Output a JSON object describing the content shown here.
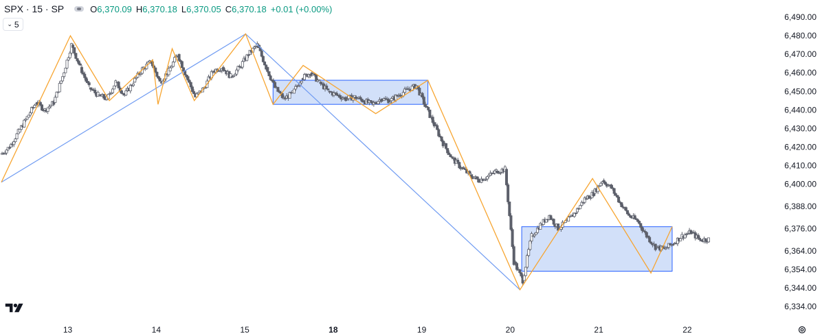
{
  "legend": {
    "symbol": "SPX · 15 · SP",
    "open_label": "O",
    "open": "6,370.09",
    "high_label": "H",
    "high": "6,370.18",
    "low_label": "L",
    "low": "6,370.05",
    "close_label": "C",
    "close": "6,370.18",
    "change": "+0.01 (+0.00%)",
    "up_color": "#089981"
  },
  "collapse_button": {
    "label": "5"
  },
  "icons": {
    "logo": "tradingview-logo-icon",
    "settings": "gear-icon",
    "visibility": "eye-icon",
    "collapse": "chevron-down-icon"
  },
  "colors": {
    "candle": "#5d606b",
    "zigzag": "#f7a531",
    "trend": "#6f9bf2",
    "box_fill": "#c7d8f8",
    "box_border": "#2962ff"
  },
  "chart_data": {
    "type": "candlestick",
    "ylim": [
      6331,
      6493
    ],
    "y_ticks": [
      "6,490.00",
      "6,480.00",
      "6,470.00",
      "6,460.00",
      "6,450.00",
      "6,440.00",
      "6,430.00",
      "6,420.00",
      "6,410.00",
      "6,400.00",
      "6,388.00",
      "6,376.00",
      "6,364.00",
      "6,354.00",
      "6,344.00",
      "6,334.00"
    ],
    "y_tick_values": [
      6490,
      6480,
      6470,
      6460,
      6450,
      6440,
      6430,
      6420,
      6410,
      6400,
      6388,
      6376,
      6364,
      6354,
      6344,
      6334
    ],
    "x_ticks": [
      {
        "label": "13",
        "bar": 7,
        "bold": false
      },
      {
        "label": "14",
        "bar": 17,
        "bold": false
      },
      {
        "label": "15",
        "bar": 27,
        "bold": false
      },
      {
        "label": "18",
        "bar": 37,
        "bold": true
      },
      {
        "label": "19",
        "bar": 47,
        "bold": false
      },
      {
        "label": "20",
        "bar": 57,
        "bold": false
      },
      {
        "label": "21",
        "bar": 67,
        "bold": false
      },
      {
        "label": "22",
        "bar": 77,
        "bold": false
      }
    ],
    "xlim": [
      -0.5,
      84
    ],
    "bar_closes": [
      6420,
      6428,
      6436,
      6444,
      6440,
      6444,
      6458,
      6475,
      6463,
      6452,
      6448,
      6446,
      6455,
      6448,
      6455,
      6462,
      6466,
      6455,
      6461,
      6470,
      6458,
      6447,
      6452,
      6461,
      6463,
      6458,
      6463,
      6470,
      6475,
      6463,
      6452,
      6446,
      6449,
      6457,
      6460,
      6455,
      6450,
      6448,
      6446,
      6447,
      6445,
      6443,
      6446,
      6445,
      6448,
      6451,
      6453,
      6442,
      6432,
      6422,
      6414,
      6409,
      6405,
      6402,
      6404,
      6407,
      6408,
      6358,
      6348,
      6372,
      6378,
      6383,
      6376,
      6380,
      6385,
      6392,
      6395,
      6402,
      6398,
      6390,
      6383,
      6380,
      6372,
      6366,
      6365,
      6368,
      6372,
      6374,
      6370,
      6370.18
    ],
    "zigzag": [
      [
        -0.5,
        6401
      ],
      [
        7.3,
        6480
      ],
      [
        11.7,
        6445
      ],
      [
        16.6,
        6467
      ],
      [
        17.2,
        6443
      ],
      [
        18.8,
        6473
      ],
      [
        21.3,
        6445
      ],
      [
        27.1,
        6481
      ],
      [
        30.2,
        6443
      ],
      [
        33.6,
        6464
      ],
      [
        41.8,
        6438
      ],
      [
        47.7,
        6456
      ],
      [
        58.1,
        6343
      ],
      [
        66.3,
        6403
      ],
      [
        72.9,
        6352
      ],
      [
        75.3,
        6377
      ]
    ],
    "trendline": [
      [
        -0.5,
        6401
      ],
      [
        27.1,
        6481
      ],
      [
        58.1,
        6343
      ]
    ],
    "ranges": [
      {
        "bar_start": 30.2,
        "bar_end": 47.7,
        "high": 6456,
        "low": 6443
      },
      {
        "bar_start": 58.3,
        "bar_end": 75.3,
        "high": 6377,
        "low": 6353
      }
    ]
  }
}
